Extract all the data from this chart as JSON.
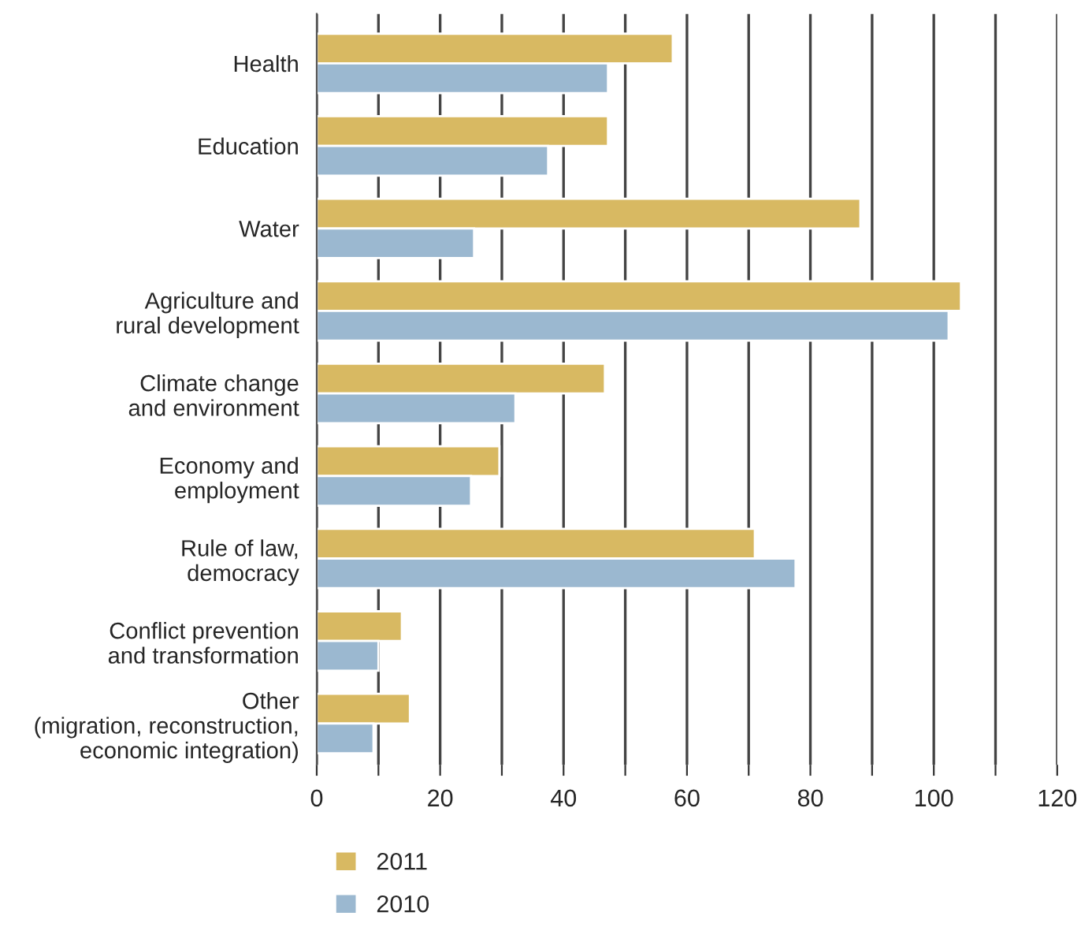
{
  "chart_data": {
    "type": "bar",
    "orientation": "horizontal",
    "categories": [
      "Health",
      "Education",
      "Water",
      "Agriculture and\nrural development",
      "Climate change\nand environment",
      "Economy and\nemployment",
      "Rule of law,\ndemocracy",
      "Conflict prevention\nand transformation",
      "Other\n(migration, reconstruction,\neconomic integration)"
    ],
    "series": [
      {
        "name": "2011",
        "color": "#d8b962",
        "values": [
          57.7,
          47.2,
          88.1,
          104.4,
          46.7,
          29.6,
          71.0,
          13.8,
          15.1
        ]
      },
      {
        "name": "2010",
        "color": "#9bb8d0",
        "values": [
          47.2,
          37.5,
          25.5,
          102.4,
          32.2,
          25.0,
          77.6,
          10.0,
          9.2
        ]
      }
    ],
    "xlim": [
      0,
      120
    ],
    "xticks": [
      0,
      {
        "value": 10,
        "label": null
      },
      20,
      {
        "value": 30,
        "label": null
      },
      40,
      {
        "value": 50,
        "label": null
      },
      60,
      {
        "value": 70,
        "label": null
      },
      80,
      {
        "value": 90,
        "label": null
      },
      100,
      {
        "value": 110,
        "label": null
      },
      120
    ],
    "grid": "x",
    "legend": "bottom"
  }
}
